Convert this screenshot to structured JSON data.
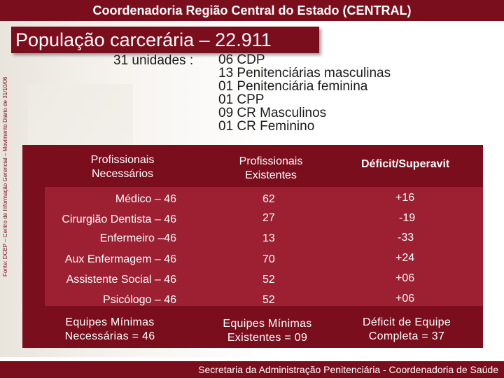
{
  "header": {
    "title": "Coordenadoria Região Central do Estado (CENTRAL)"
  },
  "population": {
    "text": "População carcerária – 22.911"
  },
  "source_note": "Fonte: DCEP – Centro de Informação Gerencial – Movimento Diário de 31/10/06",
  "units": {
    "label": "31 unidades :",
    "items": [
      "06 CDP",
      "13 Penitenciárias masculinas",
      "01 Penitenciária feminina",
      "01 CPP",
      "09 CR Masculinos",
      "01 CR Feminino"
    ]
  },
  "table": {
    "headers": {
      "necessary": [
        "Profissionais",
        "Necessários"
      ],
      "existing": [
        "Profissionais",
        "Existentes"
      ],
      "deficit": "Déficit/Superavit"
    },
    "rows": [
      {
        "role": "Médico – 46",
        "existing": "62",
        "balance": "+16"
      },
      {
        "role": "Cirurgião Dentista – 46",
        "existing": "27",
        "balance": "-19"
      },
      {
        "role": "Enfermeiro –46",
        "existing": "13",
        "balance": "-33"
      },
      {
        "role": "Aux Enfermagem – 46",
        "existing": "70",
        "balance": "+24"
      },
      {
        "role": "Assistente Social – 46",
        "existing": "52",
        "balance": "+06"
      },
      {
        "role": "Psicólogo – 46",
        "existing": "52",
        "balance": "+06"
      }
    ],
    "footer": {
      "necessary": [
        "Equipes Mínimas",
        "Necessárias = 46"
      ],
      "existing": [
        "Equipes Mínimas",
        "Existentes = 09"
      ],
      "deficit": [
        "Déficit de Equipe",
        "Completa = 37"
      ]
    }
  },
  "footer": {
    "text": "Secretaria da Administração Penitenciária - Coordenadoria de Saúde"
  },
  "colors": {
    "brand": "#7a0e1d",
    "panel_inner": "#9c1f32"
  }
}
